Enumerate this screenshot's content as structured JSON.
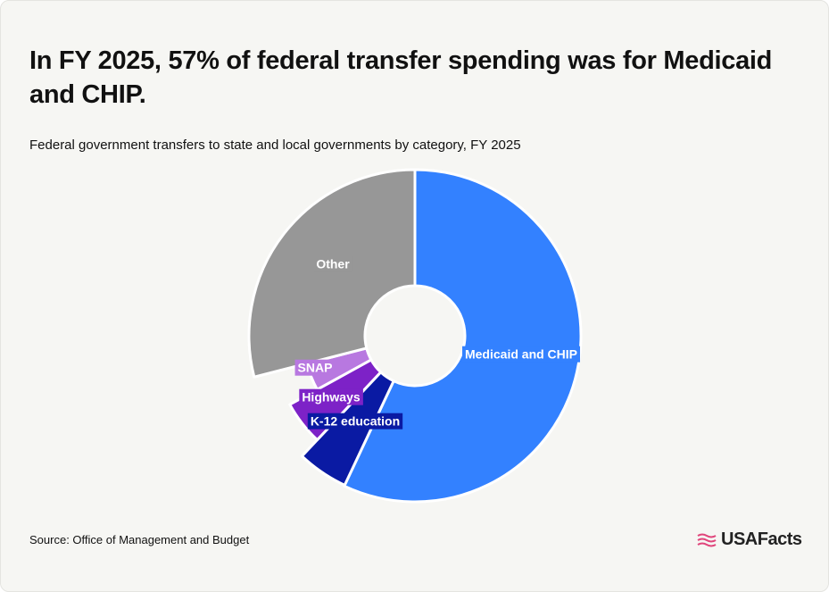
{
  "title": "In FY 2025, 57% of federal transfer spending was for Medicaid and CHIP.",
  "subtitle": "Federal government transfers to state and local governments by category, FY 2025",
  "source": "Source: Office of Management and Budget",
  "brand": {
    "name": "USAFacts",
    "icon": "us-flag-icon"
  },
  "chart_data": {
    "type": "pie",
    "style": "donut",
    "slices": [
      {
        "label": "Medicaid and CHIP",
        "value": 57,
        "color": "#3381ff"
      },
      {
        "label": "K-12 education",
        "value": 5,
        "color": "#0a1aa3"
      },
      {
        "label": "Highways",
        "value": 5,
        "color": "#7d22c7"
      },
      {
        "label": "SNAP",
        "value": 4,
        "color": "#b878e0"
      },
      {
        "label": "Other",
        "value": 29,
        "color": "#979797"
      }
    ]
  }
}
